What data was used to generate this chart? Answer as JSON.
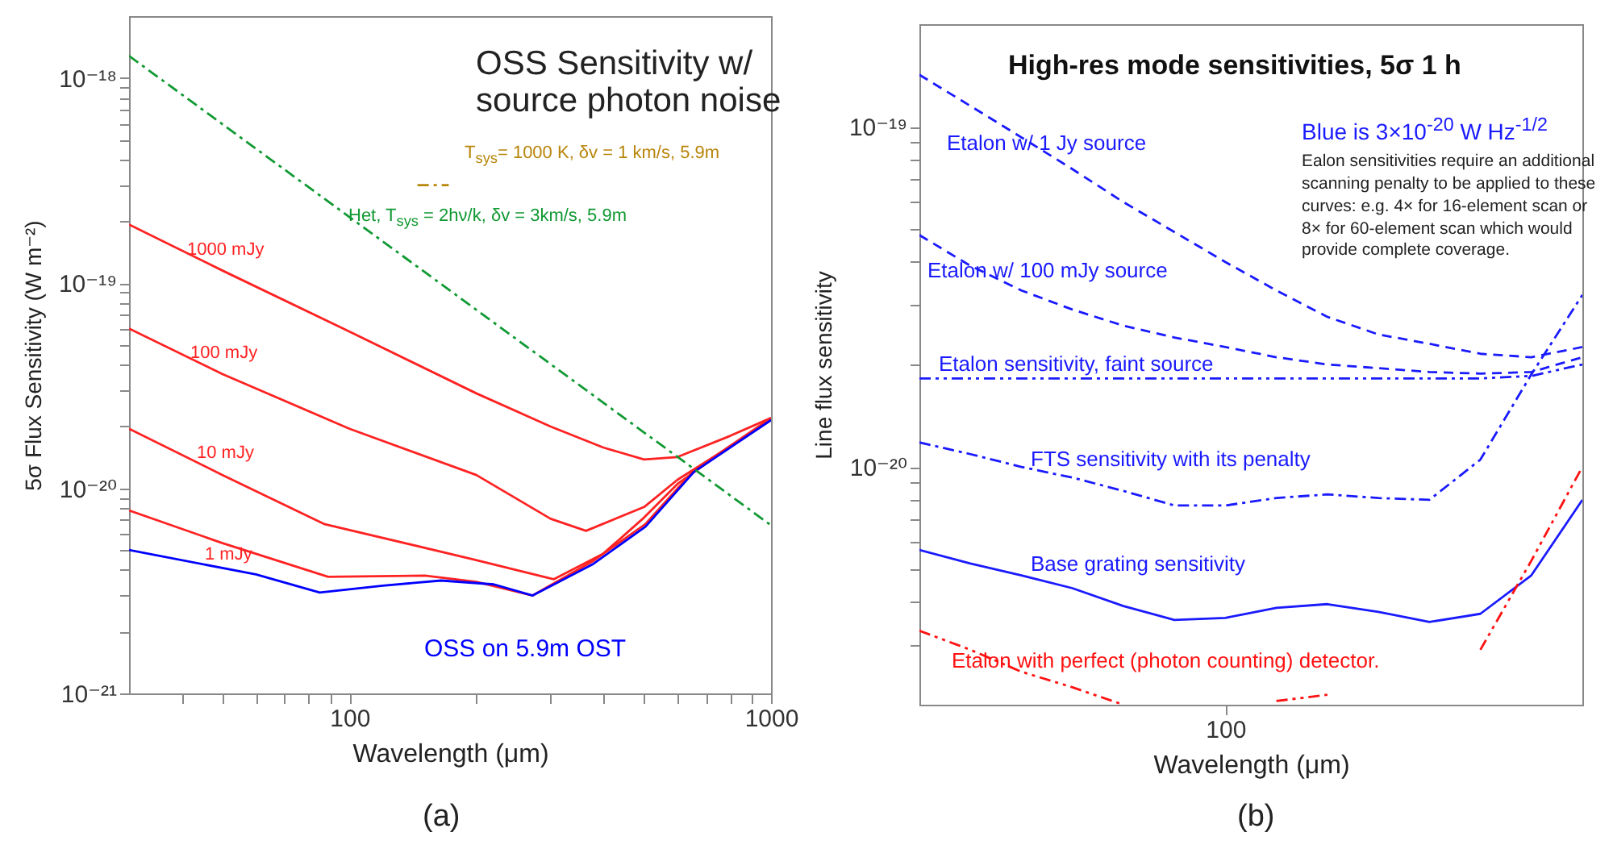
{
  "chart_data": [
    {
      "type": "line",
      "title": "OSS Sensitivity w/\nsource photon noise",
      "xlabel": "Wavelength (μm)",
      "ylabel": "5σ Flux Sensitivity (W m⁻²)",
      "log": "xy",
      "marker": "none",
      "xlim": [
        30,
        1000
      ],
      "ylim": [
        1e-21,
        2e-18
      ],
      "xticks": [
        {
          "value": 40,
          "label": null
        },
        {
          "value": 50,
          "label": null
        },
        {
          "value": 60,
          "label": null
        },
        {
          "value": 70,
          "label": null
        },
        {
          "value": 80,
          "label": null
        },
        {
          "value": 90,
          "label": null
        },
        100,
        {
          "value": 200,
          "label": null
        },
        {
          "value": 300,
          "label": null
        },
        {
          "value": 400,
          "label": null
        },
        {
          "value": 500,
          "label": null
        },
        {
          "value": 600,
          "label": null
        },
        {
          "value": 700,
          "label": null
        },
        {
          "value": 800,
          "label": null
        },
        {
          "value": 900,
          "label": null
        },
        1000
      ],
      "yticks": [
        {
          "value": 1e-21,
          "label": "10⁻²¹"
        },
        {
          "value": 2e-21,
          "label": null
        },
        {
          "value": 3e-21,
          "label": null
        },
        {
          "value": 4e-21,
          "label": null
        },
        {
          "value": 5e-21,
          "label": null
        },
        {
          "value": 6e-21,
          "label": null
        },
        {
          "value": 7e-21,
          "label": null
        },
        {
          "value": 8e-21,
          "label": null
        },
        {
          "value": 9e-21,
          "label": null
        },
        {
          "value": 1e-20,
          "label": "10⁻²⁰"
        },
        {
          "value": 2e-20,
          "label": null
        },
        {
          "value": 3e-20,
          "label": null
        },
        {
          "value": 4e-20,
          "label": null
        },
        {
          "value": 5e-20,
          "label": null
        },
        {
          "value": 6e-20,
          "label": null
        },
        {
          "value": 7e-20,
          "label": null
        },
        {
          "value": 8e-20,
          "label": null
        },
        {
          "value": 9e-20,
          "label": null
        },
        {
          "value": 1e-19,
          "label": "10⁻¹⁹"
        },
        {
          "value": 2e-19,
          "label": null
        },
        {
          "value": 3e-19,
          "label": null
        },
        {
          "value": 4e-19,
          "label": null
        },
        {
          "value": 5e-19,
          "label": null
        },
        {
          "value": 6e-19,
          "label": null
        },
        {
          "value": 7e-19,
          "label": null
        },
        {
          "value": 8e-19,
          "label": null
        },
        {
          "value": 9e-19,
          "label": null
        },
        {
          "value": 1e-18,
          "label": "10⁻¹⁸"
        }
      ],
      "series": [
        {
          "name": "1000 mJy",
          "color": "#ff2222",
          "line_style": "solid",
          "x": [
            30,
            50,
            100,
            200,
            300,
            400,
            500,
            600,
            800,
            1000
          ],
          "values": [
            1.93e-19,
            1.15e-19,
            5.8e-20,
            2.9e-20,
            2e-20,
            1.58e-20,
            1.38e-20,
            1.42e-20,
            1.8e-20,
            2.2e-20
          ]
        },
        {
          "name": "100 mJy",
          "color": "#ff2222",
          "line_style": "solid",
          "x": [
            30,
            50,
            100,
            200,
            300,
            364,
            500,
            600,
            800,
            1000
          ],
          "values": [
            6e-20,
            3.6e-20,
            1.95e-20,
            1.16e-20,
            7.1e-21,
            6.2e-21,
            8.1e-21,
            1.1e-20,
            1.6e-20,
            2.15e-20
          ]
        },
        {
          "name": "10 mJy",
          "color": "#ff2222",
          "line_style": "solid",
          "x": [
            30,
            50,
            87,
            197,
            305,
            400,
            500,
            600,
            800,
            1000
          ],
          "values": [
            1.95e-20,
            1.16e-20,
            6.7e-21,
            4.5e-21,
            3.6e-21,
            4.8e-21,
            7.2e-21,
            1.05e-20,
            1.6e-20,
            2.15e-20
          ]
        },
        {
          "name": "1 mJy",
          "color": "#ff2222",
          "line_style": "solid",
          "x": [
            30,
            50,
            89,
            151,
            200,
            272,
            377,
            504,
            656,
            1000
          ],
          "values": [
            7.8e-21,
            5.4e-21,
            3.7e-21,
            3.75e-21,
            3.5e-21,
            3e-21,
            4.4e-21,
            6.7e-21,
            1.22e-20,
            2.2e-20
          ]
        },
        {
          "name": "OSS on 5.9m OST",
          "color": "#0000ff",
          "line_style": "solid",
          "x": [
            30,
            60,
            85,
            120,
            165,
            220,
            272,
            377,
            504,
            656,
            1000
          ],
          "values": [
            5e-21,
            3.8e-21,
            3.1e-21,
            3.35e-21,
            3.55e-21,
            3.4e-21,
            3e-21,
            4.25e-21,
            6.5e-21,
            1.2e-20,
            2.15e-20
          ]
        },
        {
          "name": "T$_{sys}$= 1000 K, δv = 1 km/s, 5.9m",
          "color": "#b8860b",
          "line_style": "dashdot",
          "x": [
            145,
            172
          ],
          "values": [
            3e-19,
            3e-19
          ]
        },
        {
          "name": "Het, T$_{sys}$ = 2hν/k, δv = 3km/s, 5.9m",
          "color": "#119933",
          "line_style": "dashdot",
          "x": [
            30,
            1000
          ],
          "values": [
            1.28e-18,
            6.6e-21
          ]
        }
      ],
      "annotations": [
        "(a)"
      ]
    },
    {
      "type": "line",
      "title": "High-res mode sensitivities, 5σ 1 h",
      "xlabel": "Wavelength (μm)",
      "ylabel": "Line flux sensitivity",
      "log": "y",
      "marker": "none",
      "categories": [
        null,
        null,
        null,
        null,
        null,
        null,
        "100",
        null,
        null,
        null,
        null,
        null,
        null,
        null
      ],
      "ylim": [
        2e-21,
        2e-19
      ],
      "yticks": [
        {
          "value": 3e-21,
          "label": null
        },
        {
          "value": 4e-21,
          "label": null
        },
        {
          "value": 5e-21,
          "label": null
        },
        {
          "value": 6e-21,
          "label": null
        },
        {
          "value": 7e-21,
          "label": null
        },
        {
          "value": 8e-21,
          "label": null
        },
        {
          "value": 9e-21,
          "label": null
        },
        {
          "value": 1e-20,
          "label": "10⁻²⁰"
        },
        {
          "value": 2e-20,
          "label": null
        },
        {
          "value": 3e-20,
          "label": null
        },
        {
          "value": 4e-20,
          "label": null
        },
        {
          "value": 5e-20,
          "label": null
        },
        {
          "value": 6e-20,
          "label": null
        },
        {
          "value": 7e-20,
          "label": null
        },
        {
          "value": 8e-20,
          "label": null
        },
        {
          "value": 9e-20,
          "label": null
        },
        {
          "value": 1e-19,
          "label": "10⁻¹⁹"
        }
      ],
      "series": [
        {
          "name": "Etalon w/ 1 Jy source",
          "color": "#1a1aff",
          "line_style": "dashed",
          "values": [
            1.42e-19,
            1.15e-19,
            9.3e-20,
            7.5e-20,
            6e-20,
            4.9e-20,
            4e-20,
            3.3e-20,
            2.76e-20,
            2.45e-20,
            2.3e-20,
            2.15e-20,
            2.1e-20,
            2.25e-20
          ]
        },
        {
          "name": "Etalon w/ 100 mJy source",
          "color": "#1a1aff",
          "line_style": "dashed",
          "values": [
            4.8e-20,
            3.9e-20,
            3.3e-20,
            2.9e-20,
            2.6e-20,
            2.4e-20,
            2.25e-20,
            2.1e-20,
            2e-20,
            1.95e-20,
            1.9e-20,
            1.88e-20,
            1.9e-20,
            2.1e-20
          ]
        },
        {
          "name": "Etalon sensitivity, faint source",
          "color": "#1a1aff",
          "line_style": "dashdotdot",
          "values": [
            1.82e-20,
            1.82e-20,
            1.82e-20,
            1.82e-20,
            1.82e-20,
            1.82e-20,
            1.82e-20,
            1.82e-20,
            1.82e-20,
            1.82e-20,
            1.82e-20,
            1.82e-20,
            1.85e-20,
            2e-20
          ]
        },
        {
          "name": "FTS sensitivity with its penalty",
          "color": "#1a1aff",
          "line_style": "dashdot",
          "values": [
            1.18e-20,
            1.09e-20,
            1e-20,
            9.3e-21,
            8.5e-21,
            7.7e-21,
            7.7e-21,
            8.1e-21,
            8.3e-21,
            8.1e-21,
            8e-21,
            1.05e-20,
            1.87e-20,
            3.2e-20
          ]
        },
        {
          "name": "Base grating sensitivity",
          "color": "#1a1aff",
          "line_style": "solid",
          "values": [
            5.7e-21,
            5.2e-21,
            4.8e-21,
            4.4e-21,
            3.9e-21,
            3.55e-21,
            3.6e-21,
            3.85e-21,
            3.95e-21,
            3.75e-21,
            3.5e-21,
            3.7e-21,
            4.8e-21,
            8e-21
          ]
        },
        {
          "name": "Etalon with perfect (photon counting) detector.",
          "color": "#ff1111",
          "line_style": "dashdotdot",
          "values": [
            3.3e-21,
            2.9e-21,
            2.5e-21,
            2.25e-21,
            2e-21,
            null,
            null,
            2.05e-21,
            2.14e-21,
            null,
            null,
            2.9e-21,
            5.3e-21,
            1e-20
          ]
        }
      ],
      "annotations": [
        "Blue is 3×10$^{-20}$ W Hz$^{-1/2}$",
        "Ealon sensitivities require an additional scanning penalty to be applied to these curves: e.g. 4× for 16-element scan or 8× for 60-element scan which would provide complete coverage.",
        "(b)"
      ]
    }
  ]
}
